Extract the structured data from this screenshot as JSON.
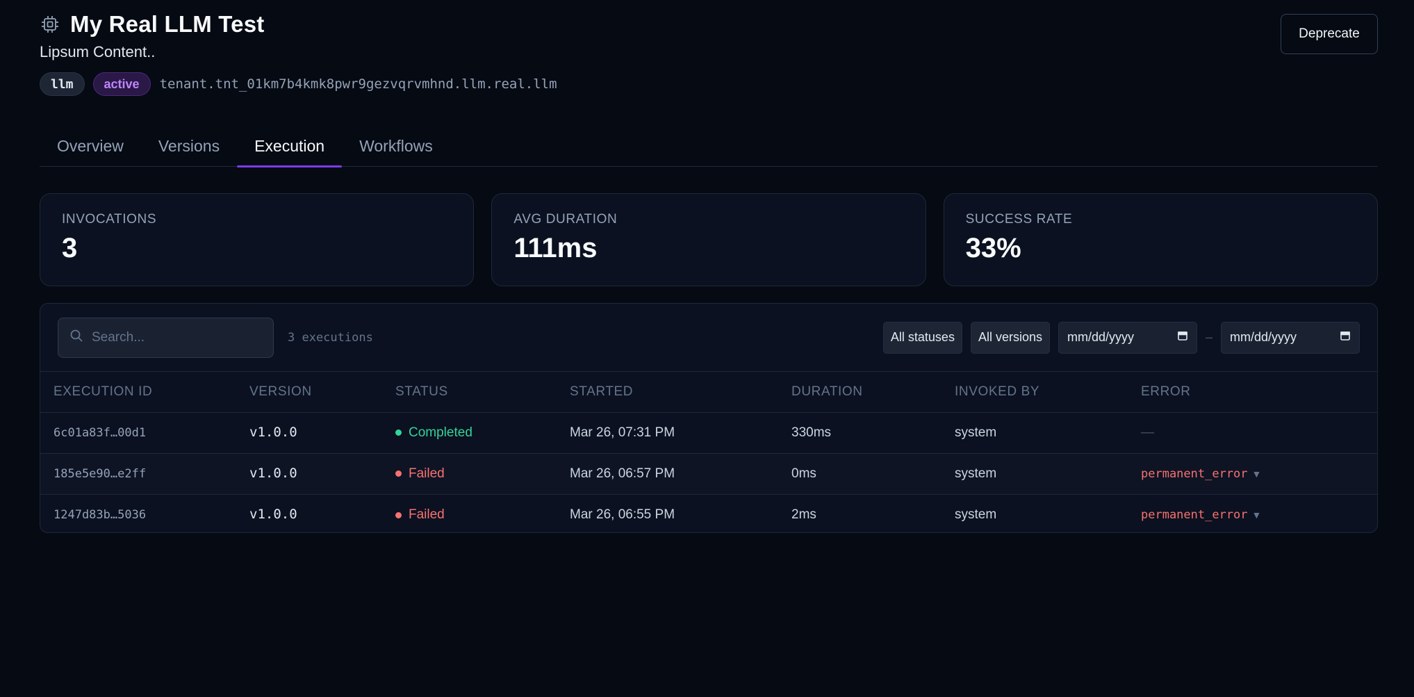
{
  "header": {
    "icon": "cpu-chip-icon",
    "title": "My Real LLM Test",
    "subtitle": "Lipsum Content..",
    "type_badge": "llm",
    "status_badge": "active",
    "identifier": "tenant.tnt_01km7b4kmk8pwr9gezvqrvmhnd.llm.real.llm",
    "deprecate_label": "Deprecate"
  },
  "tabs": [
    {
      "label": "Overview",
      "active": false
    },
    {
      "label": "Versions",
      "active": false
    },
    {
      "label": "Execution",
      "active": true
    },
    {
      "label": "Workflows",
      "active": false
    }
  ],
  "stats": [
    {
      "label": "INVOCATIONS",
      "value": "3"
    },
    {
      "label": "AVG DURATION",
      "value": "111ms"
    },
    {
      "label": "SUCCESS RATE",
      "value": "33%"
    }
  ],
  "toolbar": {
    "search_placeholder": "Search...",
    "count_text": "3 executions",
    "status_filter": "All statuses",
    "version_filter": "All versions",
    "date_from_placeholder": "mm/dd/yyyy",
    "date_to_placeholder": "mm/dd/yyyy",
    "date_separator": "–"
  },
  "table": {
    "columns": [
      "EXECUTION ID",
      "VERSION",
      "STATUS",
      "STARTED",
      "DURATION",
      "INVOKED BY",
      "ERROR"
    ],
    "rows": [
      {
        "id": "6c01a83f…00d1",
        "version": "v1.0.0",
        "status": "Completed",
        "started": "Mar 26, 07:31 PM",
        "duration": "330ms",
        "invoked_by": "system",
        "error": "—"
      },
      {
        "id": "185e5e90…e2ff",
        "version": "v1.0.0",
        "status": "Failed",
        "started": "Mar 26, 06:57 PM",
        "duration": "0ms",
        "invoked_by": "system",
        "error": "permanent_error"
      },
      {
        "id": "1247d83b…5036",
        "version": "v1.0.0",
        "status": "Failed",
        "started": "Mar 26, 06:55 PM",
        "duration": "2ms",
        "invoked_by": "system",
        "error": "permanent_error"
      }
    ]
  },
  "colors": {
    "background": "#060a13",
    "accent": "#7c3aed",
    "success": "#34d399",
    "error": "#f87171"
  }
}
